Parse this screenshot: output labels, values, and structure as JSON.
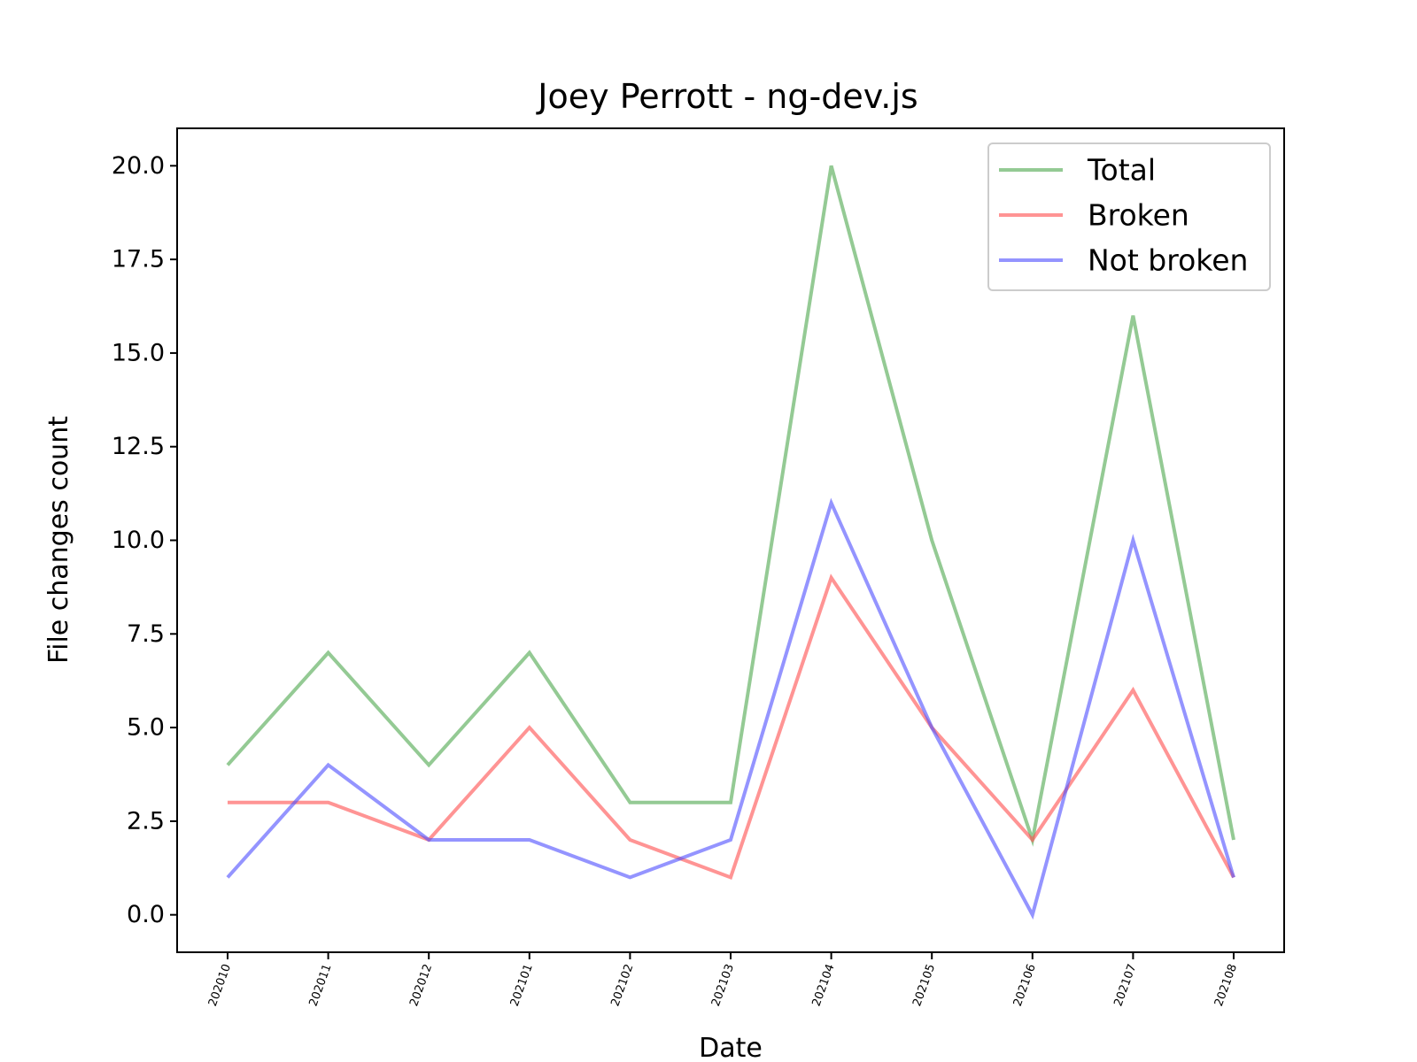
{
  "chart_data": {
    "type": "line",
    "title": "Joey Perrott - ng-dev.js",
    "xlabel": "Date",
    "ylabel": "File changes count",
    "categories": [
      "202010",
      "202011",
      "202012",
      "202101",
      "202102",
      "202103",
      "202104",
      "202105",
      "202106",
      "202107",
      "202108"
    ],
    "ylim": [
      -1,
      21
    ],
    "yticks": [
      0.0,
      2.5,
      5.0,
      7.5,
      10.0,
      12.5,
      15.0,
      17.5,
      20.0
    ],
    "ytick_labels": [
      "0.0",
      "2.5",
      "5.0",
      "7.5",
      "10.0",
      "12.5",
      "15.0",
      "17.5",
      "20.0"
    ],
    "grid": false,
    "legend_position": "top-right",
    "series": [
      {
        "name": "Total",
        "color": "#4ca64c",
        "values": [
          4,
          7,
          4,
          7,
          3,
          3,
          20,
          10,
          2,
          16,
          2
        ]
      },
      {
        "name": "Broken",
        "color": "#ff4d4d",
        "values": [
          3,
          3,
          2,
          5,
          2,
          1,
          9,
          5,
          2,
          6,
          1
        ]
      },
      {
        "name": "Not broken",
        "color": "#4d4dff",
        "values": [
          1,
          4,
          2,
          2,
          1,
          2,
          11,
          5,
          0,
          10,
          1
        ]
      }
    ]
  }
}
